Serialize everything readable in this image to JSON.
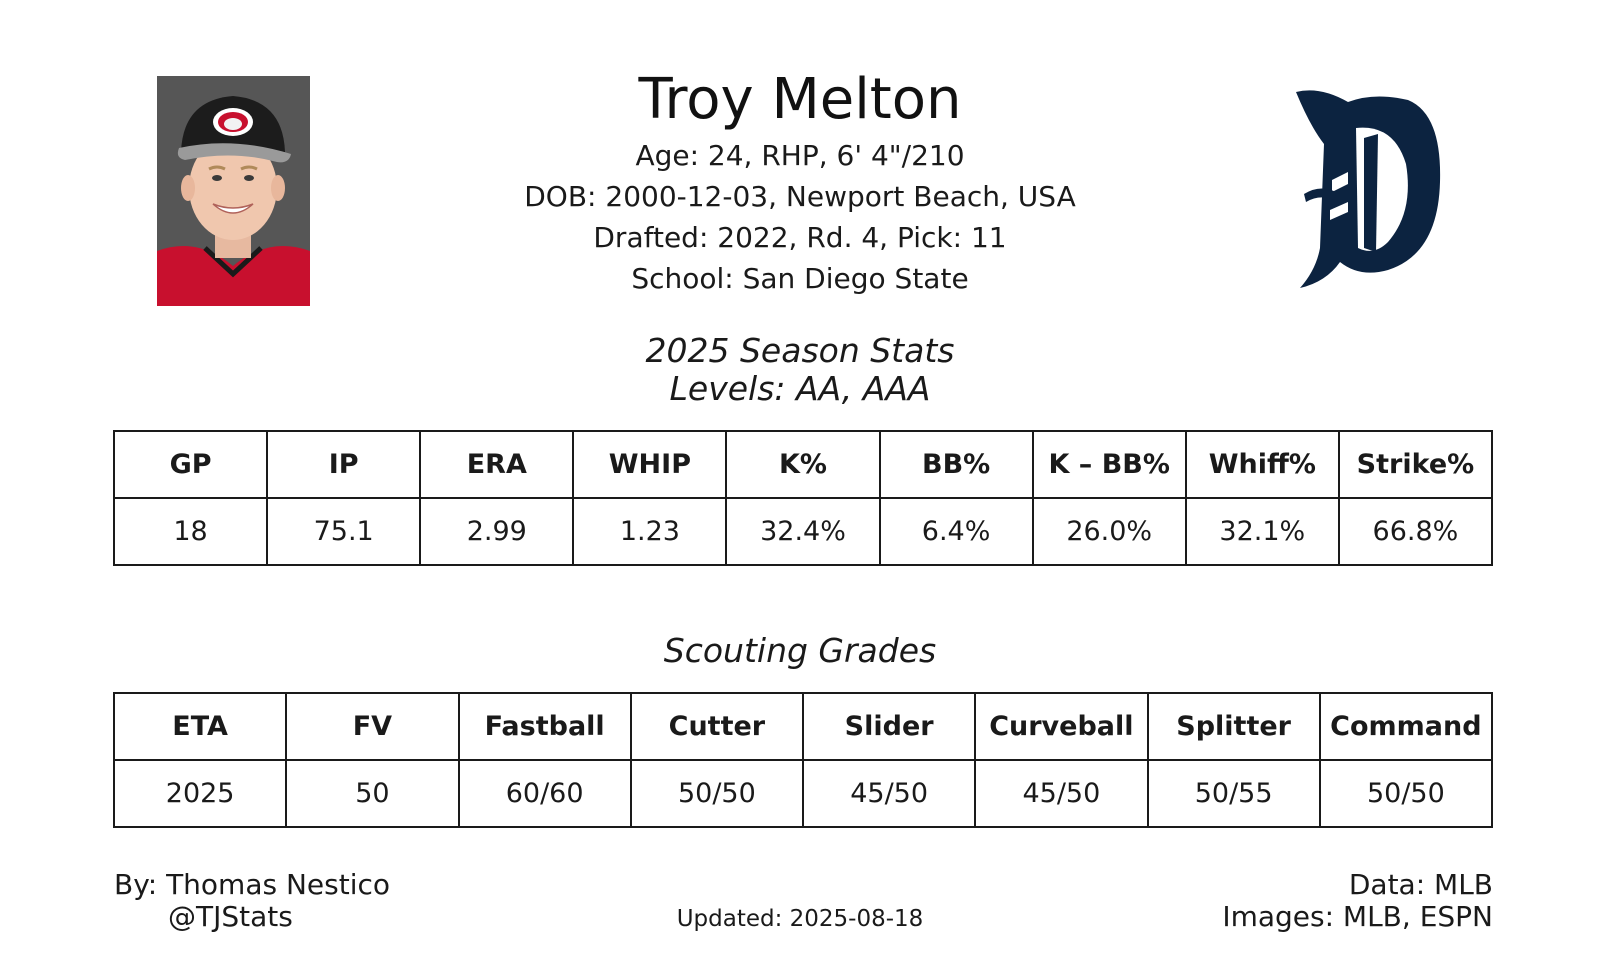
{
  "player": {
    "name": "Troy Melton",
    "bio": [
      "Age: 24, RHP, 6' 4\"/210",
      "DOB: 2000-12-03, Newport Beach, USA",
      "Drafted: 2022, Rd. 4, Pick: 11",
      "School: San Diego State"
    ]
  },
  "season": {
    "title": "2025 Season Stats",
    "levels": "Levels: AA, AAA",
    "headers": [
      "GP",
      "IP",
      "ERA",
      "WHIP",
      "K%",
      "BB%",
      "K – BB%",
      "Whiff%",
      "Strike%"
    ],
    "values": [
      "18",
      "75.1",
      "2.99",
      "1.23",
      "32.4%",
      "6.4%",
      "26.0%",
      "32.1%",
      "66.8%"
    ]
  },
  "scouting": {
    "title": "Scouting Grades",
    "headers": [
      "ETA",
      "FV",
      "Fastball",
      "Cutter",
      "Slider",
      "Curveball",
      "Splitter",
      "Command"
    ],
    "values": [
      "2025",
      "50",
      "60/60",
      "50/50",
      "45/50",
      "45/50",
      "50/55",
      "50/50"
    ]
  },
  "footer": {
    "author": "By: Thomas Nestico",
    "handle": "@TJStats",
    "updated": "Updated: 2025-08-18",
    "data_source": "Data: MLB",
    "image_source": "Images: MLB, ESPN"
  },
  "colors": {
    "tigers_navy": "#0c2340",
    "jersey_red": "#c8102e"
  },
  "icons": {
    "team_logo": "detroit-tigers-old-english-d",
    "headshot": "player-headshot"
  }
}
